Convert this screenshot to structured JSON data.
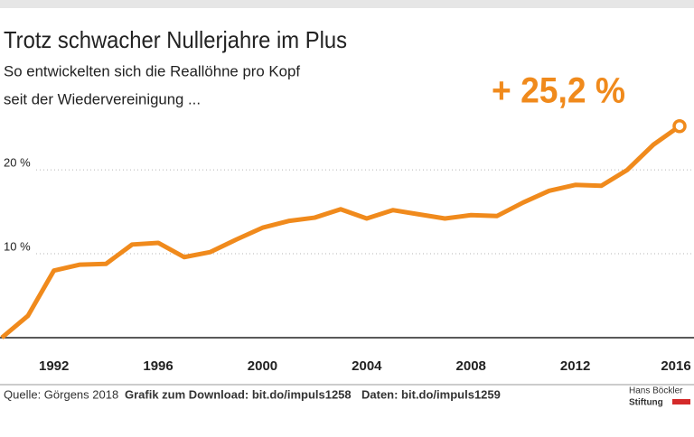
{
  "chart_data": {
    "type": "line",
    "title": "Trotz schwacher Nullerjahre im Plus",
    "subtitle": [
      "So entwickelten sich die Reallöhne pro Kopf",
      "seit der Wiedervereinigung ..."
    ],
    "annotation": "+ 25,2 %",
    "x": [
      1990,
      1991,
      1992,
      1993,
      1994,
      1995,
      1996,
      1997,
      1998,
      1999,
      2000,
      2001,
      2002,
      2003,
      2004,
      2005,
      2006,
      2007,
      2008,
      2009,
      2010,
      2011,
      2012,
      2013,
      2014,
      2015,
      2016
    ],
    "series": [
      {
        "color": "#f08a1c",
        "values": [
          0,
          2.6,
          8.0,
          8.7,
          8.8,
          11.1,
          11.3,
          9.6,
          10.2,
          11.7,
          13.1,
          13.9,
          14.3,
          15.3,
          14.2,
          15.2,
          14.7,
          14.2,
          14.6,
          14.5,
          16.1,
          17.5,
          18.2,
          18.1,
          20.0,
          23.0,
          25.2
        ]
      }
    ],
    "xlim": [
      1990,
      2016
    ],
    "xticks": [
      1992,
      1996,
      2000,
      2004,
      2008,
      2012,
      2016
    ],
    "ylim": [
      0,
      27
    ],
    "yticks": [
      {
        "value": 10,
        "label": "10 %"
      },
      {
        "value": 20,
        "label": "20 %"
      }
    ],
    "grid": true,
    "footer": {
      "source": "Quelle: Görgens 2018",
      "download": "Grafik zum Download: bit.do/impuls1258",
      "data": "Daten: bit.do/impuls1259",
      "logo": [
        "Hans Böckler",
        "Stiftung"
      ]
    }
  }
}
